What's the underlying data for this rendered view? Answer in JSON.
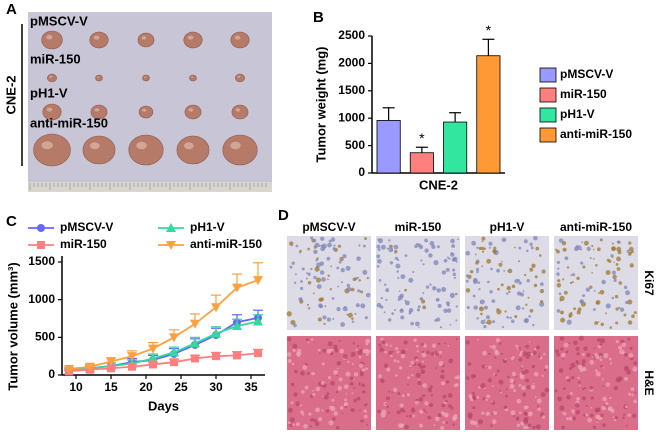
{
  "panel_labels": [
    "A",
    "B",
    "C",
    "D"
  ],
  "photo": {
    "side_label": "CNE-2",
    "rows": [
      "pMSCV-V",
      "miR-150",
      "pH1-V",
      "anti-miR-150"
    ]
  },
  "chart_data": [
    {
      "type": "bar",
      "ylabel": "Tumor weight (mg)",
      "categories": [
        "CNE-2"
      ],
      "ylim": [
        0,
        2500
      ],
      "yticks": [
        0,
        500,
        1000,
        1500,
        2000,
        2500
      ],
      "series": [
        {
          "name": "pMSCV-V",
          "color": "#9999ff",
          "values": [
            960
          ],
          "errors": [
            230
          ]
        },
        {
          "name": "miR-150",
          "color": "#ff7f7f",
          "values": [
            370
          ],
          "errors": [
            100
          ],
          "annotation": "*"
        },
        {
          "name": "pH1-V",
          "color": "#33e6a0",
          "values": [
            930
          ],
          "errors": [
            170
          ]
        },
        {
          "name": "anti-miR-150",
          "color": "#ff9933",
          "values": [
            2140
          ],
          "errors": [
            300
          ],
          "annotation": "*"
        }
      ]
    },
    {
      "type": "line",
      "xlabel": "Days",
      "ylabel": "Tumor volume (mm³)",
      "x": [
        9,
        12,
        15,
        18,
        21,
        24,
        27,
        30,
        33,
        36
      ],
      "xlim": [
        8,
        37
      ],
      "xticks": [
        10,
        15,
        20,
        25,
        30,
        35
      ],
      "ylim": [
        0,
        1500
      ],
      "yticks": [
        0,
        500,
        1000,
        1500
      ],
      "series": [
        {
          "name": "pMSCV-V",
          "color": "#6666ff",
          "marker": "circle",
          "values": [
            60,
            90,
            120,
            170,
            200,
            280,
            400,
            530,
            700,
            760
          ],
          "errors": [
            20,
            30,
            40,
            50,
            60,
            70,
            80,
            90,
            100,
            100
          ]
        },
        {
          "name": "pH1-V",
          "color": "#33d9a0",
          "marker": "triangle-up",
          "values": [
            60,
            90,
            120,
            150,
            220,
            300,
            420,
            550,
            650,
            710
          ],
          "errors": [
            20,
            30,
            40,
            50,
            60,
            70,
            80,
            90,
            90,
            90
          ]
        },
        {
          "name": "miR-150",
          "color": "#ff7f7f",
          "marker": "square",
          "values": [
            50,
            70,
            90,
            110,
            140,
            170,
            220,
            250,
            260,
            290
          ],
          "errors": [
            10,
            20,
            20,
            30,
            30,
            40,
            40,
            50,
            50,
            50
          ]
        },
        {
          "name": "anti-miR-150",
          "color": "#ffa040",
          "marker": "triangle-down",
          "values": [
            80,
            110,
            180,
            250,
            350,
            500,
            680,
            900,
            1160,
            1260
          ],
          "errors": [
            20,
            30,
            50,
            70,
            80,
            100,
            130,
            160,
            180,
            230
          ]
        }
      ]
    }
  ],
  "staining": {
    "columns": [
      "pMSCV-V",
      "miR-150",
      "pH1-V",
      "anti-miR-150"
    ],
    "rows": [
      "Ki67",
      "H&E"
    ]
  }
}
